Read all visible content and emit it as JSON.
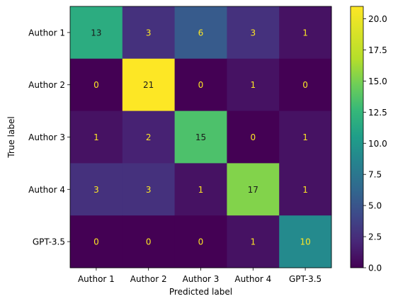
{
  "chart_data": {
    "type": "heatmap",
    "title": "",
    "xlabel": "Predicted label",
    "ylabel": "True label",
    "x_categories": [
      "Author 1",
      "Author 2",
      "Author 3",
      "Author 4",
      "GPT-3.5"
    ],
    "y_categories": [
      "Author 1",
      "Author 2",
      "Author 3",
      "Author 4",
      "GPT-3.5"
    ],
    "values": [
      [
        13,
        3,
        6,
        3,
        1
      ],
      [
        0,
        21,
        0,
        1,
        0
      ],
      [
        1,
        2,
        15,
        0,
        1
      ],
      [
        3,
        3,
        1,
        17,
        1
      ],
      [
        0,
        0,
        0,
        1,
        10
      ]
    ],
    "colormap": "viridis",
    "colorbar": {
      "min": 0,
      "max": 21,
      "ticks": [
        "0.0",
        "2.5",
        "5.0",
        "7.5",
        "10.0",
        "12.5",
        "15.0",
        "17.5",
        "20.0"
      ]
    },
    "colors": {
      "low_text": "#fde725",
      "high_text": "#1a1a1a"
    }
  }
}
